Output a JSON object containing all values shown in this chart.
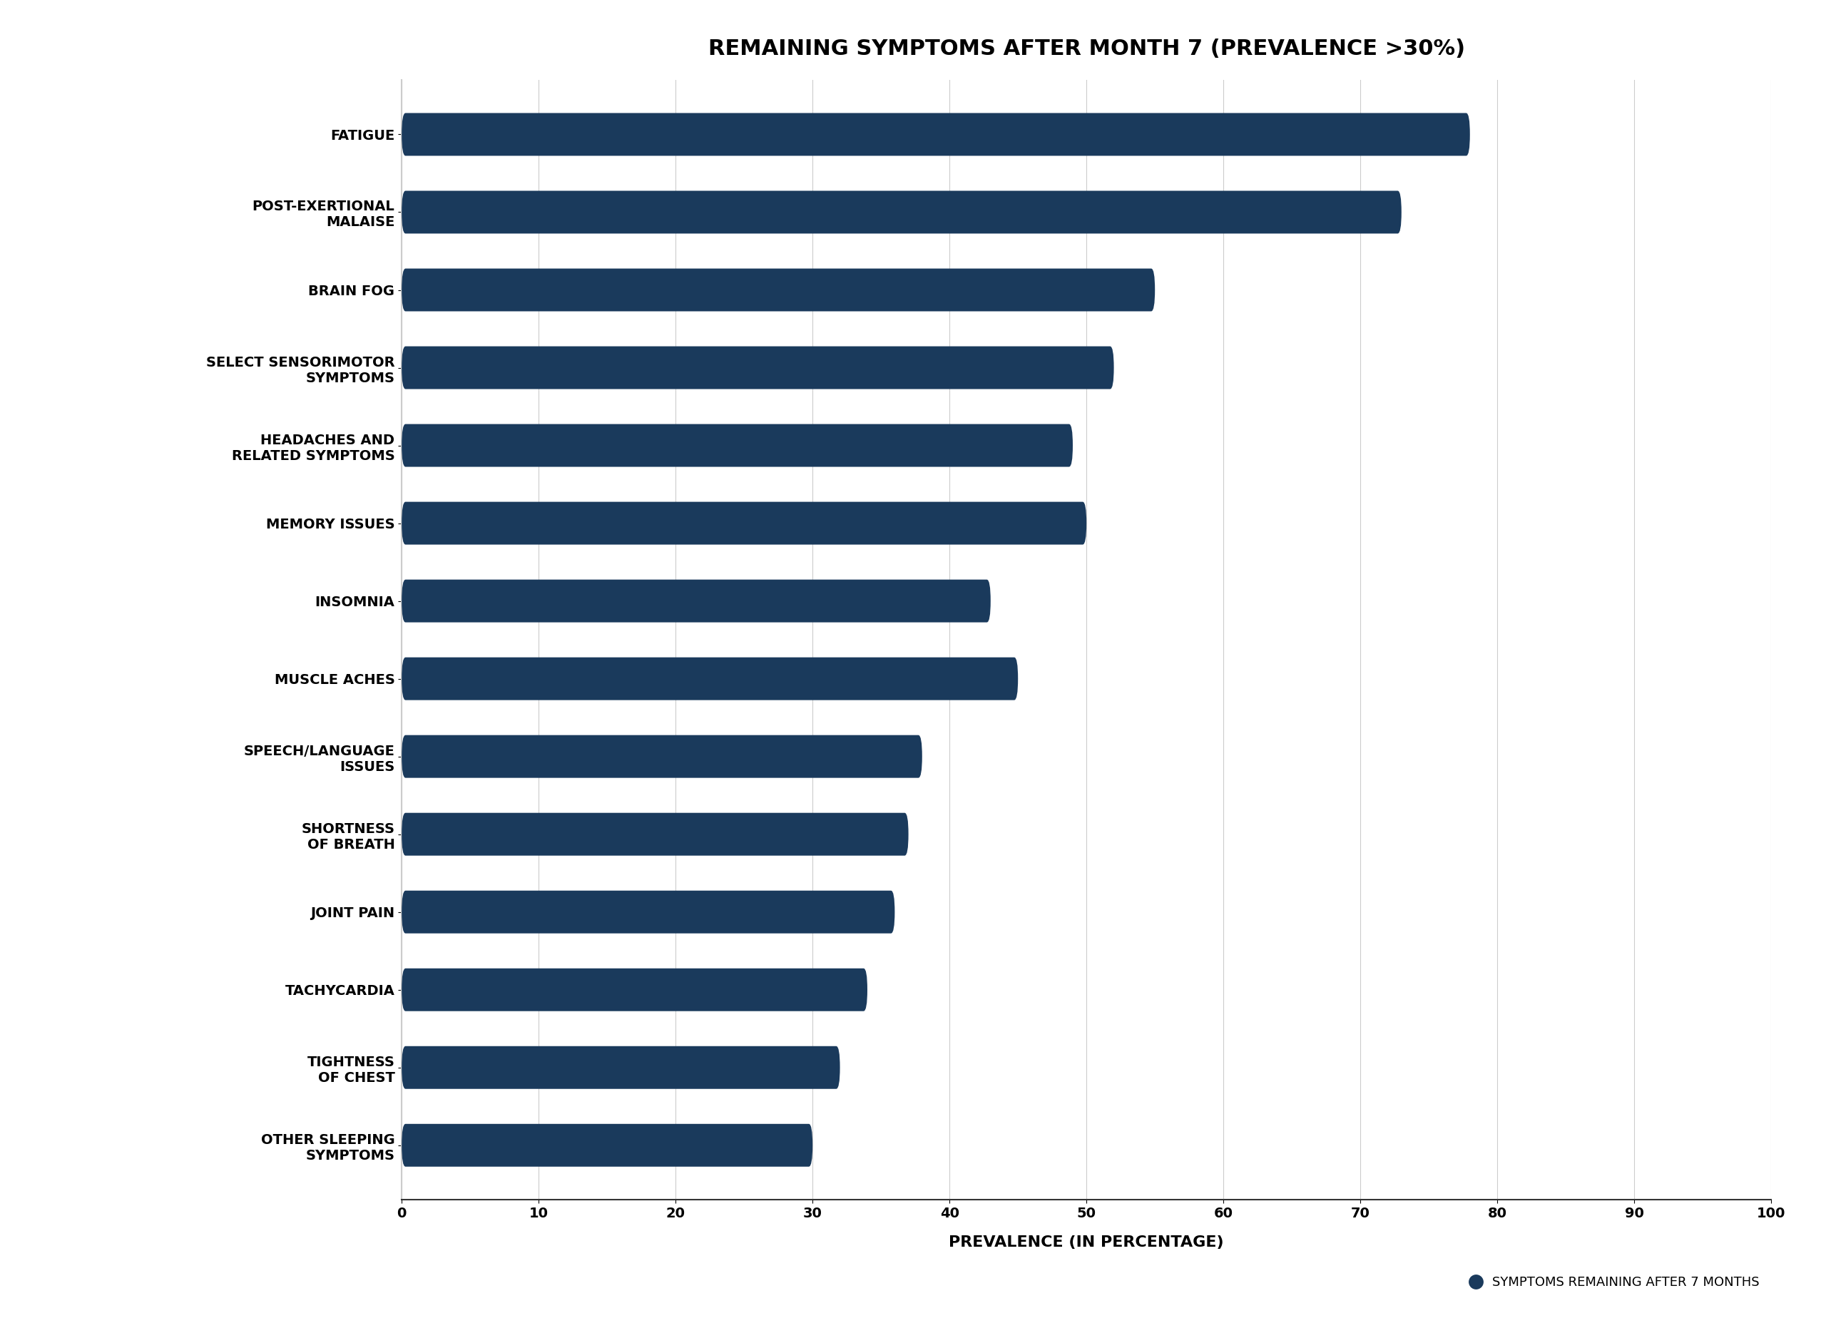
{
  "title": "REMAINING SYMPTOMS AFTER MONTH 7 (PREVALENCE >30%)",
  "categories": [
    "OTHER SLEEPING\nSYMPTOMS",
    "TIGHTNESS\nOF CHEST",
    "TACHYCARDIA",
    "JOINT PAIN",
    "SHORTNESS\nOF BREATH",
    "SPEECH/LANGUAGE\nISSUES",
    "MUSCLE ACHES",
    "INSOMNIA",
    "MEMORY ISSUES",
    "HEADACHES AND\nRELATED SYMPTOMS",
    "SELECT SENSORIMOTOR\nSYMPTOMS",
    "BRAIN FOG",
    "POST-EXERTIONAL\nMALAISE",
    "FATIGUE"
  ],
  "values": [
    30,
    32,
    34,
    36,
    37,
    38,
    45,
    43,
    50,
    49,
    52,
    55,
    73,
    78
  ],
  "bar_color": "#1a3a5c",
  "xlabel": "PREVALENCE (IN PERCENTAGE)",
  "ylabel": "",
  "xlim": [
    0,
    100
  ],
  "xticks": [
    0,
    10,
    20,
    30,
    40,
    50,
    60,
    70,
    80,
    90,
    100
  ],
  "background_color": "#ffffff",
  "grid_color": "#cccccc",
  "legend_label": "SYMPTOMS REMAINING AFTER 7 MONTHS",
  "title_fontsize": 22,
  "label_fontsize": 14,
  "tick_fontsize": 14,
  "bar_height": 0.55
}
